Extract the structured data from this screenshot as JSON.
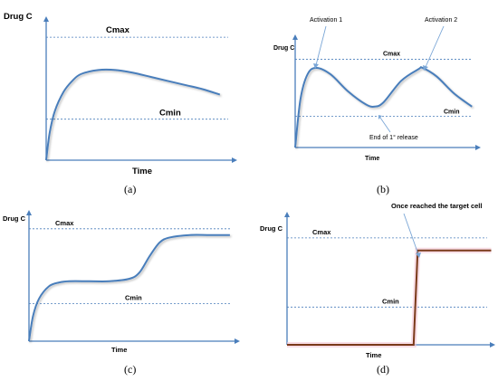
{
  "chart_data": [
    {
      "type": "line",
      "panel": "(a)",
      "ylabel": "Drug C",
      "xlabel": "Time",
      "reference_lines": [
        {
          "label": "Cmax",
          "y": 0.9
        },
        {
          "label": "Cmin",
          "y": 0.3
        }
      ],
      "series": [
        {
          "x": [
            0,
            0.02,
            0.05,
            0.1,
            0.15,
            0.2,
            0.3,
            0.4,
            0.5,
            0.6,
            0.7,
            0.8,
            0.9,
            1.0
          ],
          "y": [
            0,
            0.2,
            0.36,
            0.5,
            0.58,
            0.63,
            0.66,
            0.66,
            0.64,
            0.61,
            0.58,
            0.55,
            0.52,
            0.48
          ]
        }
      ],
      "xlim": [
        0,
        1.1
      ],
      "ylim": [
        0,
        1.0
      ]
    },
    {
      "type": "line",
      "panel": "(b)",
      "ylabel": "Drug C",
      "xlabel": "Time",
      "reference_lines": [
        {
          "label": "Cmax",
          "y": 0.82
        },
        {
          "label": "Cmin",
          "y": 0.29
        }
      ],
      "annotations": [
        "Activation 1",
        "Activation 2",
        "End of 1° release"
      ],
      "series": [
        {
          "x": [
            0,
            0.03,
            0.07,
            0.12,
            0.2,
            0.3,
            0.4,
            0.45,
            0.5,
            0.6,
            0.7,
            0.72,
            0.8,
            0.9,
            1.0
          ],
          "y": [
            0,
            0.45,
            0.68,
            0.74,
            0.68,
            0.52,
            0.4,
            0.38,
            0.42,
            0.62,
            0.73,
            0.74,
            0.66,
            0.5,
            0.38
          ]
        }
      ],
      "xlim": [
        0,
        1.05
      ],
      "ylim": [
        0,
        1.0
      ]
    },
    {
      "type": "line",
      "panel": "(c)",
      "ylabel": "Drug C",
      "xlabel": "Time",
      "reference_lines": [
        {
          "label": "Cmax",
          "y": 0.9
        },
        {
          "label": "Cmin",
          "y": 0.3
        }
      ],
      "series": [
        {
          "x": [
            0,
            0.02,
            0.05,
            0.1,
            0.15,
            0.2,
            0.3,
            0.4,
            0.5,
            0.55,
            0.6,
            0.65,
            0.7,
            0.8,
            0.9,
            1.0
          ],
          "y": [
            0,
            0.2,
            0.34,
            0.44,
            0.47,
            0.48,
            0.48,
            0.48,
            0.5,
            0.55,
            0.68,
            0.79,
            0.83,
            0.85,
            0.85,
            0.85
          ]
        }
      ],
      "xlim": [
        0,
        1.05
      ],
      "ylim": [
        0,
        1.0
      ]
    },
    {
      "type": "line",
      "panel": "(d)",
      "ylabel": "Drug C",
      "xlabel": "Time",
      "reference_lines": [
        {
          "label": "Cmax",
          "y": 0.85
        },
        {
          "label": "Cmin",
          "y": 0.3
        }
      ],
      "annotations": [
        "Once reached the target cell"
      ],
      "series": [
        {
          "x": [
            0,
            0.62,
            0.64,
            1.0
          ],
          "y": [
            0,
            0,
            0.75,
            0.75
          ]
        }
      ],
      "xlim": [
        0,
        1.02
      ],
      "ylim": [
        0,
        1.0
      ]
    }
  ]
}
